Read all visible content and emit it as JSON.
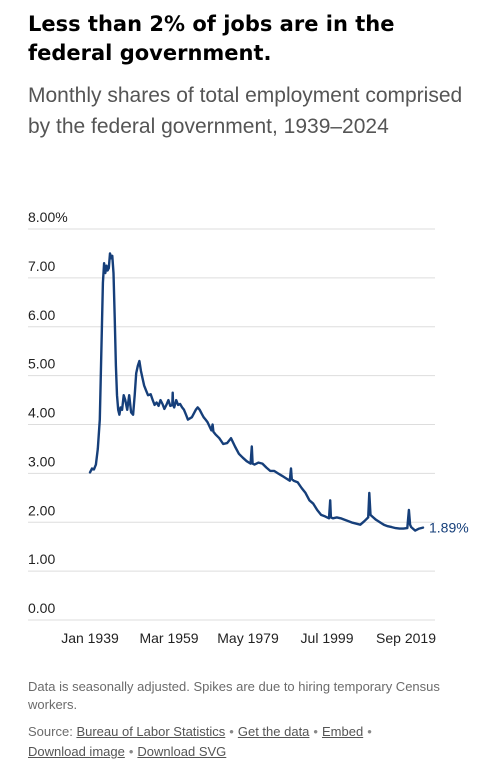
{
  "title": "Less than 2% of jobs are in the federal government.",
  "subtitle": "Monthly shares of total employment comprised by the federal government, 1939–2024",
  "note": "Data is seasonally adjusted. Spikes are due to hiring temporary Census workers.",
  "footer": {
    "source_prefix": "Source:",
    "source_link": "Bureau of Labor Statistics",
    "links": [
      "Get the data",
      "Embed",
      "Download image",
      "Download SVG"
    ]
  },
  "colors": {
    "line": "#163f7a",
    "grid": "#dddddd",
    "axis_text": "#222222"
  },
  "chart_data": {
    "type": "line",
    "title": "",
    "xlabel": "",
    "ylabel": "",
    "ylim": [
      0,
      8
    ],
    "xlim": [
      1939.0,
      2024.0
    ],
    "y_ticks": [
      0,
      1,
      2,
      3,
      4,
      5,
      6,
      7,
      8
    ],
    "y_tick_labels": [
      "0.00",
      "1.00",
      "2.00",
      "3.00",
      "4.00",
      "5.00",
      "6.00",
      "7.00",
      "8.00%"
    ],
    "x_tick_labels": [
      "Jan 1939",
      "Mar 1959",
      "May 1979",
      "Jul 1999",
      "Sep 2019"
    ],
    "x_tick_values": [
      1939.0,
      1959.17,
      1979.33,
      1999.5,
      2019.67
    ],
    "end_label": "1.89%",
    "series": [
      {
        "x": [
          1939.0,
          1939.5,
          1940.0,
          1940.5,
          1941.0,
          1941.5,
          1942.0,
          1942.3,
          1942.6,
          1942.9,
          1943.2,
          1943.5,
          1943.8,
          1944.1,
          1944.4,
          1944.7,
          1945.0,
          1945.3,
          1945.6,
          1945.9,
          1946.2,
          1946.5,
          1946.8,
          1947.2,
          1947.6,
          1948.0,
          1948.5,
          1949.0,
          1949.5,
          1950.0,
          1950.4,
          1950.8,
          1951.2,
          1951.6,
          1952.0,
          1952.4,
          1952.8,
          1953.3,
          1953.8,
          1954.5,
          1955.0,
          1955.5,
          1956.0,
          1956.5,
          1957.0,
          1957.5,
          1958.0,
          1958.5,
          1959.0,
          1959.5,
          1960.0,
          1960.1,
          1960.2,
          1960.5,
          1961.0,
          1961.5,
          1962.0,
          1962.5,
          1963.0,
          1963.5,
          1964.0,
          1965.0,
          1966.0,
          1966.5,
          1967.0,
          1967.5,
          1968.0,
          1968.5,
          1969.0,
          1970.0,
          1970.3,
          1970.5,
          1971.0,
          1972.0,
          1973.0,
          1974.0,
          1975.0,
          1976.0,
          1977.0,
          1978.0,
          1979.0,
          1980.0,
          1980.3,
          1980.5,
          1981.0,
          1982.0,
          1983.0,
          1984.0,
          1985.0,
          1986.0,
          1987.0,
          1988.0,
          1989.0,
          1990.0,
          1990.3,
          1990.5,
          1991.0,
          1992.0,
          1993.0,
          1994.0,
          1995.0,
          1996.0,
          1997.0,
          1998.0,
          1999.0,
          2000.0,
          2000.3,
          2000.5,
          2001.0,
          2002.0,
          2003.0,
          2004.0,
          2005.0,
          2006.0,
          2007.0,
          2008.0,
          2009.0,
          2010.0,
          2010.3,
          2010.6,
          2011.0,
          2012.0,
          2013.0,
          2014.0,
          2015.0,
          2016.0,
          2017.0,
          2018.0,
          2019.0,
          2020.0,
          2020.4,
          2020.7,
          2021.0,
          2022.0,
          2023.0,
          2024.0
        ],
        "y": [
          3.02,
          3.1,
          3.08,
          3.18,
          3.5,
          4.1,
          5.9,
          6.9,
          7.3,
          7.1,
          7.25,
          7.15,
          7.2,
          7.5,
          7.4,
          7.45,
          7.1,
          6.2,
          5.2,
          4.6,
          4.3,
          4.2,
          4.35,
          4.3,
          4.6,
          4.5,
          4.3,
          4.6,
          4.25,
          4.2,
          4.6,
          5.05,
          5.2,
          5.3,
          5.1,
          4.95,
          4.8,
          4.7,
          4.6,
          4.62,
          4.5,
          4.4,
          4.45,
          4.38,
          4.5,
          4.42,
          4.32,
          4.4,
          4.5,
          4.38,
          4.4,
          4.65,
          4.4,
          4.35,
          4.5,
          4.4,
          4.42,
          4.35,
          4.3,
          4.2,
          4.1,
          4.15,
          4.3,
          4.35,
          4.3,
          4.22,
          4.15,
          4.1,
          4.05,
          3.88,
          4.0,
          3.85,
          3.8,
          3.72,
          3.6,
          3.62,
          3.72,
          3.55,
          3.4,
          3.32,
          3.25,
          3.2,
          3.55,
          3.2,
          3.18,
          3.22,
          3.2,
          3.12,
          3.05,
          3.05,
          3.0,
          2.95,
          2.9,
          2.85,
          3.1,
          2.88,
          2.85,
          2.82,
          2.7,
          2.6,
          2.45,
          2.38,
          2.25,
          2.15,
          2.12,
          2.08,
          2.45,
          2.1,
          2.08,
          2.1,
          2.08,
          2.05,
          2.02,
          1.99,
          1.97,
          1.95,
          2.02,
          2.1,
          2.6,
          2.15,
          2.12,
          2.05,
          2.0,
          1.95,
          1.92,
          1.9,
          1.88,
          1.87,
          1.87,
          1.88,
          2.25,
          1.95,
          1.9,
          1.83,
          1.87,
          1.89
        ]
      }
    ]
  }
}
